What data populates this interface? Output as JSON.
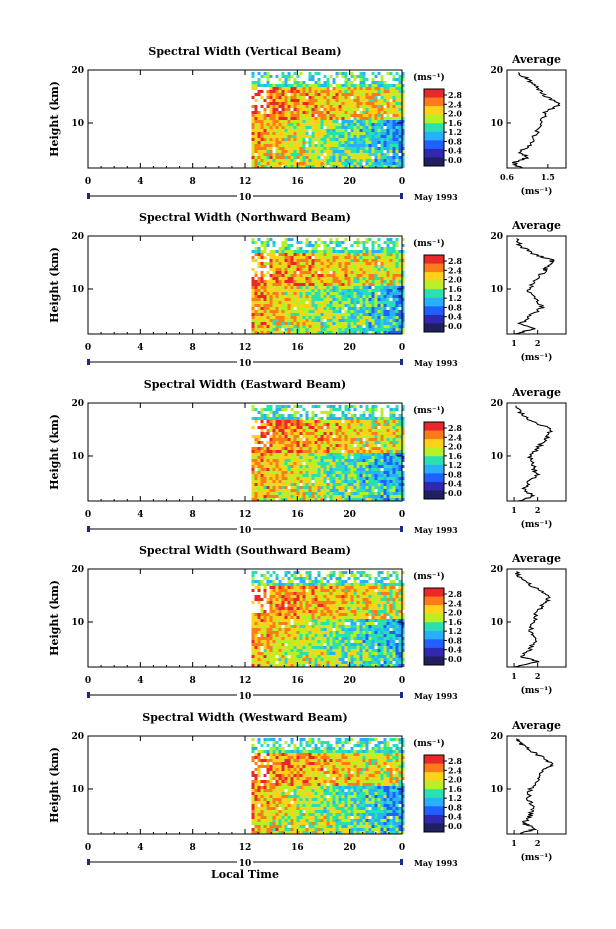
{
  "figure": {
    "xlabel": "Local Time",
    "date_label": "May 1993",
    "day_label": "10"
  },
  "colorbar": {
    "unit_label": "(ms⁻¹)",
    "tick_labels": [
      "2.8",
      "2.4",
      "2.0",
      "1.6",
      "1.2",
      "0.8",
      "0.4",
      "0.0"
    ],
    "colors": [
      "#e8282a",
      "#ff7a1a",
      "#ffd21a",
      "#b8f028",
      "#28e0b0",
      "#28b0ff",
      "#2060ff",
      "#3028b0",
      "#202060"
    ]
  },
  "chart_data": [
    {
      "type": "heatmap",
      "title": "Spectral Width (Vertical Beam)",
      "ylabel": "Height (km)",
      "xlim": [
        0,
        24
      ],
      "ylim": [
        1.5,
        20
      ],
      "xticks": [
        "0",
        "4",
        "8",
        "12",
        "16",
        "20",
        "0"
      ],
      "yticks": [
        {
          "value": 20,
          "label": "20"
        },
        {
          "value": 10,
          "label": "10"
        }
      ],
      "data_start_hour": 12.5,
      "average_profile": {
        "title": "Average",
        "xlabel": "(ms⁻¹)",
        "xlim": [
          0.6,
          1.9
        ],
        "xticks": [
          {
            "value": 0.6,
            "label": "0.6"
          },
          {
            "value": 1.5,
            "label": "1.5"
          }
        ],
        "heights": [
          1.5,
          2.5,
          3.5,
          4.5,
          6,
          8,
          10,
          12,
          13.5,
          15,
          16.5,
          18,
          19.5
        ],
        "values": [
          0.9,
          0.75,
          1.05,
          0.9,
          1.1,
          1.25,
          1.35,
          1.45,
          1.75,
          1.45,
          1.3,
          1.1,
          0.85
        ]
      }
    },
    {
      "type": "heatmap",
      "title": "Spectral Width (Northward Beam)",
      "ylabel": "Height (km)",
      "xlim": [
        0,
        24
      ],
      "ylim": [
        1.5,
        20
      ],
      "xticks": [
        "0",
        "4",
        "8",
        "12",
        "16",
        "20",
        "0"
      ],
      "yticks": [
        {
          "value": 20,
          "label": "20"
        },
        {
          "value": 10,
          "label": "10"
        }
      ],
      "data_start_hour": 12.5,
      "average_profile": {
        "title": "Average",
        "xlabel": "(ms⁻¹)",
        "xlim": [
          0.7,
          3.2
        ],
        "xticks": [
          {
            "value": 1,
            "label": "1"
          },
          {
            "value": 2,
            "label": "2"
          }
        ],
        "heights": [
          1.5,
          2.5,
          3.5,
          5,
          6.5,
          8,
          10,
          12,
          13.5,
          14.5,
          15.5,
          16.5,
          18,
          19.5
        ],
        "values": [
          1.1,
          1.8,
          1.3,
          1.7,
          2.2,
          1.9,
          1.6,
          2.0,
          2.3,
          2.5,
          2.6,
          1.9,
          1.3,
          1.1
        ]
      }
    },
    {
      "type": "heatmap",
      "title": "Spectral Width (Eastward Beam)",
      "ylabel": "Height (km)",
      "xlim": [
        0,
        24
      ],
      "ylim": [
        1.5,
        20
      ],
      "xticks": [
        "0",
        "4",
        "8",
        "12",
        "16",
        "20",
        "0"
      ],
      "yticks": [
        {
          "value": 20,
          "label": "20"
        },
        {
          "value": 10,
          "label": "10"
        }
      ],
      "data_start_hour": 12.5,
      "average_profile": {
        "title": "Average",
        "xlabel": "(ms⁻¹)",
        "xlim": [
          0.7,
          3.2
        ],
        "xticks": [
          {
            "value": 1,
            "label": "1"
          },
          {
            "value": 2,
            "label": "2"
          }
        ],
        "heights": [
          1.5,
          2.5,
          3.5,
          5,
          6.5,
          8,
          10,
          12,
          13.5,
          15,
          16.5,
          18,
          19.5
        ],
        "values": [
          1.2,
          1.9,
          1.4,
          1.6,
          2.0,
          1.8,
          1.7,
          2.1,
          2.4,
          2.6,
          1.8,
          1.3,
          1.1
        ]
      }
    },
    {
      "type": "heatmap",
      "title": "Spectral Width (Southward Beam)",
      "ylabel": "Height (km)",
      "xlim": [
        0,
        24
      ],
      "ylim": [
        1.5,
        20
      ],
      "xticks": [
        "0",
        "4",
        "8",
        "12",
        "16",
        "20",
        "0"
      ],
      "yticks": [
        {
          "value": 20,
          "label": "20"
        },
        {
          "value": 10,
          "label": "10"
        }
      ],
      "data_start_hour": 12.5,
      "average_profile": {
        "title": "Average",
        "xlabel": "(ms⁻¹)",
        "xlim": [
          0.7,
          3.2
        ],
        "xticks": [
          {
            "value": 1,
            "label": "1"
          },
          {
            "value": 2,
            "label": "2"
          }
        ],
        "heights": [
          1.5,
          2.5,
          3.5,
          5,
          6.5,
          8,
          10,
          12,
          13.5,
          15,
          16.5,
          18,
          19.5
        ],
        "values": [
          1.1,
          2.0,
          1.3,
          1.7,
          1.9,
          1.7,
          1.8,
          2.0,
          2.3,
          2.5,
          1.9,
          1.3,
          1.1
        ]
      }
    },
    {
      "type": "heatmap",
      "title": "Spectral Width (Westward Beam)",
      "ylabel": "Height (km)",
      "xlim": [
        0,
        24
      ],
      "ylim": [
        1.5,
        20
      ],
      "xticks": [
        "0",
        "4",
        "8",
        "12",
        "16",
        "20",
        "0"
      ],
      "yticks": [
        {
          "value": 20,
          "label": "20"
        },
        {
          "value": 10,
          "label": "10"
        }
      ],
      "data_start_hour": 12.5,
      "average_profile": {
        "title": "Average",
        "xlabel": "(ms⁻¹)",
        "xlim": [
          0.7,
          3.2
        ],
        "xticks": [
          {
            "value": 1,
            "label": "1"
          },
          {
            "value": 2,
            "label": "2"
          }
        ],
        "heights": [
          1.5,
          2.5,
          3.5,
          5,
          6.5,
          8,
          10,
          12,
          13.5,
          14.5,
          15.5,
          17,
          18.5,
          19.5
        ],
        "values": [
          1.2,
          1.9,
          1.4,
          1.7,
          1.8,
          1.6,
          1.7,
          2.0,
          2.2,
          2.6,
          2.4,
          1.8,
          1.3,
          1.1
        ]
      }
    }
  ]
}
